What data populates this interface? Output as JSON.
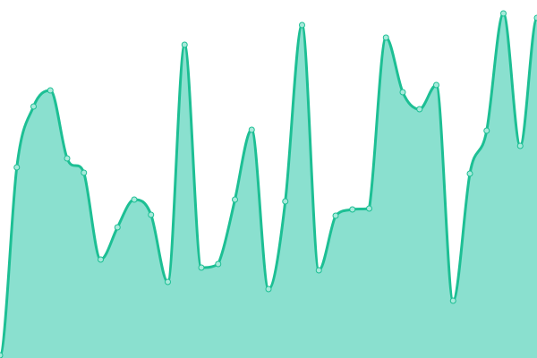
{
  "chart_data": {
    "type": "area",
    "smooth": true,
    "markers": true,
    "grid": false,
    "axes_visible": false,
    "ylim": [
      0,
      400
    ],
    "x": [
      0,
      1,
      2,
      3,
      4,
      5,
      6,
      7,
      8,
      9,
      10,
      11,
      12,
      13,
      14,
      15,
      16,
      17,
      18,
      19,
      20,
      21,
      22,
      23,
      24,
      25,
      26,
      27,
      28,
      29,
      30,
      31,
      32
    ],
    "values": [
      3,
      213,
      281,
      299,
      223,
      207,
      110,
      146,
      177,
      160,
      85,
      350,
      101,
      105,
      177,
      255,
      77,
      175,
      372,
      98,
      159,
      166,
      167,
      358,
      297,
      278,
      305,
      64,
      206,
      254,
      385,
      237,
      380
    ],
    "colors": {
      "line": "#1dbf94",
      "fill": "#8ae0cf",
      "marker_fill": "#a8eadb"
    }
  }
}
